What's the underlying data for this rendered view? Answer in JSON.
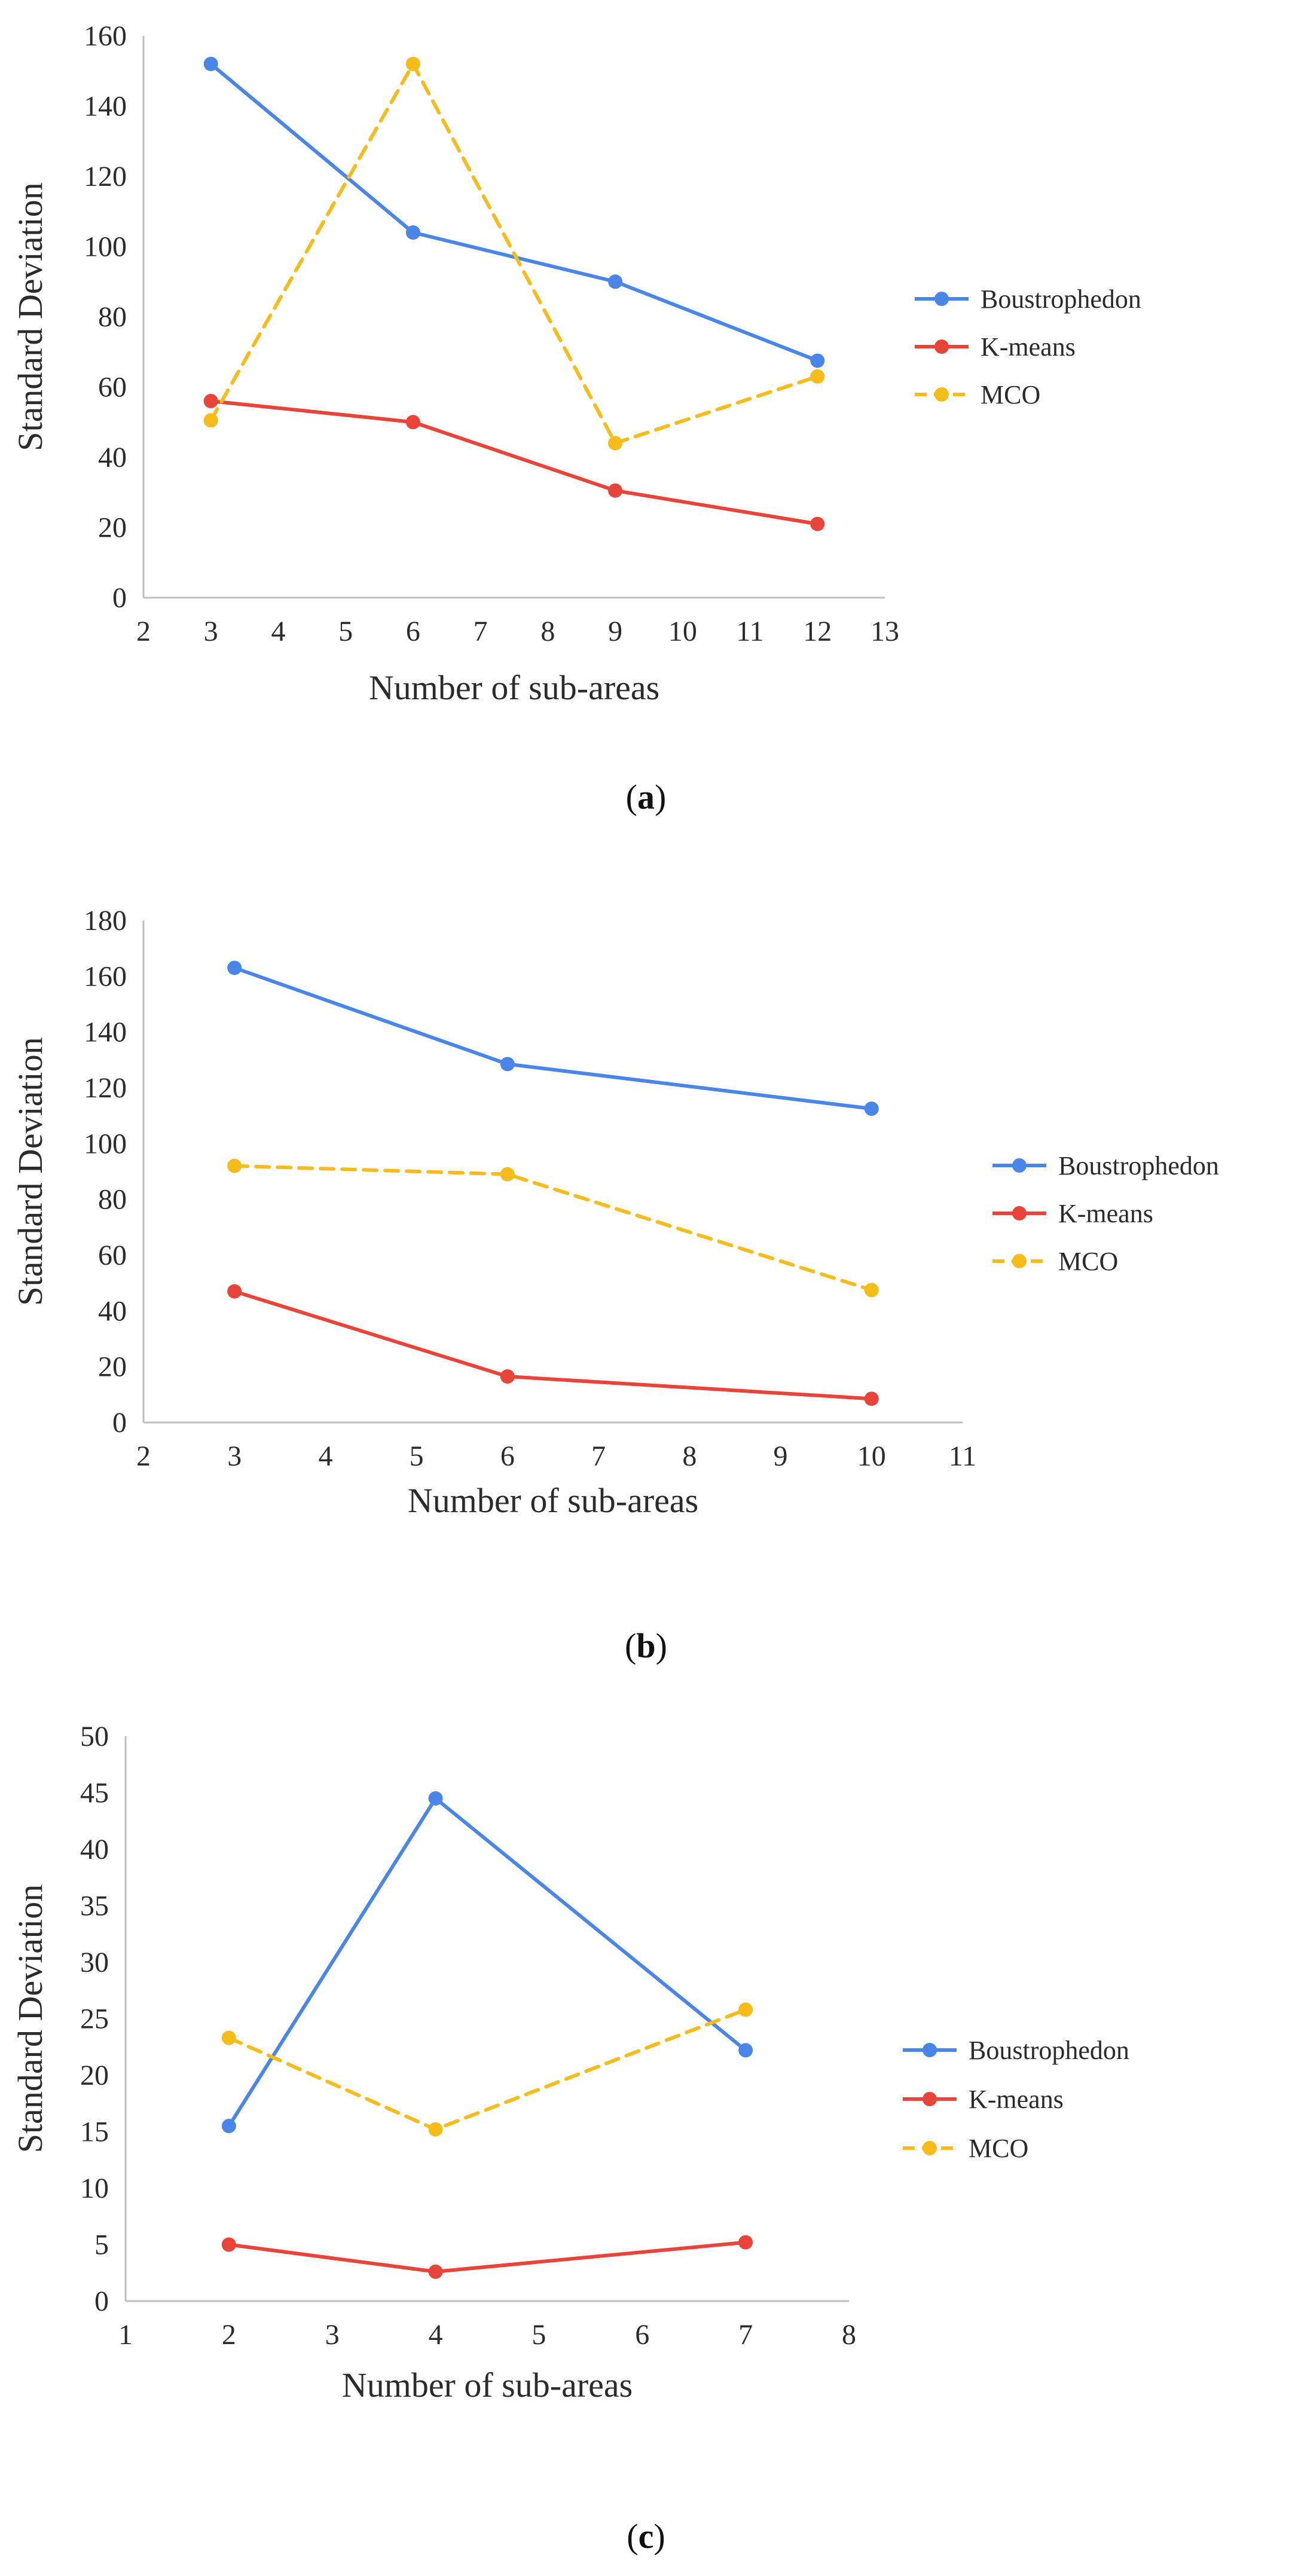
{
  "colors": {
    "boustrophedon": "#4A86E8",
    "kmeans": "#E8443A",
    "mco": "#F5BC1A",
    "axis": "#BFBFBF",
    "text": "#2b2b2b"
  },
  "chart_data": [
    {
      "id": "a",
      "type": "line",
      "caption_letter": "a",
      "xlabel": "Number of sub-areas",
      "ylabel": "Standard Deviation",
      "xlim": [
        2,
        13
      ],
      "ylim": [
        0,
        160
      ],
      "xticks": [
        2,
        3,
        4,
        5,
        6,
        7,
        8,
        9,
        10,
        11,
        12,
        13
      ],
      "yticks": [
        0,
        20,
        40,
        60,
        80,
        100,
        120,
        140,
        160
      ],
      "grid": false,
      "legend_position": "right",
      "series": [
        {
          "name": "Boustrophedon",
          "style": "solid",
          "color_key": "boustrophedon",
          "x": [
            3,
            6,
            9,
            12
          ],
          "values": [
            152,
            104,
            90,
            67.5
          ]
        },
        {
          "name": "K-means",
          "style": "solid",
          "color_key": "kmeans",
          "x": [
            3,
            6,
            9,
            12
          ],
          "values": [
            56,
            50,
            30.5,
            21
          ]
        },
        {
          "name": "MCO",
          "style": "dashed",
          "color_key": "mco",
          "x": [
            3,
            6,
            9,
            12
          ],
          "values": [
            50.5,
            152,
            44,
            63
          ]
        }
      ]
    },
    {
      "id": "b",
      "type": "line",
      "caption_letter": "b",
      "xlabel": "Number of sub-areas",
      "ylabel": "Standard Deviation",
      "xlim": [
        2,
        11
      ],
      "ylim": [
        0,
        180
      ],
      "xticks": [
        2,
        3,
        4,
        5,
        6,
        7,
        8,
        9,
        10,
        11
      ],
      "yticks": [
        0,
        20,
        40,
        60,
        80,
        100,
        120,
        140,
        160,
        180
      ],
      "grid": false,
      "legend_position": "right",
      "series": [
        {
          "name": "Boustrophedon",
          "style": "solid",
          "color_key": "boustrophedon",
          "x": [
            3,
            6,
            10
          ],
          "values": [
            163,
            128.5,
            112.5
          ]
        },
        {
          "name": "K-means",
          "style": "solid",
          "color_key": "kmeans",
          "x": [
            3,
            6,
            10
          ],
          "values": [
            47,
            16.5,
            8.5
          ]
        },
        {
          "name": "MCO",
          "style": "dashed",
          "color_key": "mco",
          "x": [
            3,
            6,
            10
          ],
          "values": [
            92,
            89,
            47.5
          ]
        }
      ]
    },
    {
      "id": "c",
      "type": "line",
      "caption_letter": "c",
      "xlabel": "Number of  sub-areas",
      "ylabel": "Standard Deviation",
      "xlim": [
        1,
        8
      ],
      "ylim": [
        0,
        50
      ],
      "xticks": [
        1,
        2,
        3,
        4,
        5,
        6,
        7,
        8
      ],
      "yticks": [
        0,
        5,
        10,
        15,
        20,
        25,
        30,
        35,
        40,
        45,
        50
      ],
      "grid": false,
      "legend_position": "right",
      "series": [
        {
          "name": "Boustrophedon",
          "style": "solid",
          "color_key": "boustrophedon",
          "x": [
            2,
            4,
            7
          ],
          "values": [
            15.5,
            44.5,
            22.2
          ]
        },
        {
          "name": "K-means",
          "style": "solid",
          "color_key": "kmeans",
          "x": [
            2,
            4,
            7
          ],
          "values": [
            5,
            2.6,
            5.2
          ]
        },
        {
          "name": "MCO",
          "style": "dashed",
          "color_key": "mco",
          "x": [
            2,
            4,
            7
          ],
          "values": [
            23.3,
            15.2,
            25.8
          ]
        }
      ]
    }
  ]
}
